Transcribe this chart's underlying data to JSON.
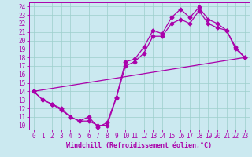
{
  "bg_color": "#cbe9f0",
  "grid_color": "#9dcfcc",
  "line_color": "#aa00aa",
  "xlim": [
    -0.5,
    23.5
  ],
  "ylim": [
    9.5,
    24.5
  ],
  "xticks": [
    0,
    1,
    2,
    3,
    4,
    5,
    6,
    7,
    8,
    9,
    10,
    11,
    12,
    13,
    14,
    15,
    16,
    17,
    18,
    19,
    20,
    21,
    22,
    23
  ],
  "yticks": [
    10,
    11,
    12,
    13,
    14,
    15,
    16,
    17,
    18,
    19,
    20,
    21,
    22,
    23,
    24
  ],
  "xlabel": "Windchill (Refroidissement éolien,°C)",
  "line1_x": [
    0,
    1,
    2,
    3,
    4,
    5,
    6,
    7,
    8,
    9,
    10,
    11,
    12,
    13,
    14,
    15,
    16,
    17,
    18,
    19,
    20,
    21,
    22,
    23
  ],
  "line1_y": [
    14.0,
    13.0,
    12.5,
    12.0,
    11.0,
    10.5,
    11.0,
    9.8,
    10.3,
    13.3,
    17.5,
    17.8,
    19.2,
    21.2,
    20.8,
    22.7,
    23.7,
    22.7,
    23.9,
    22.5,
    22.0,
    21.2,
    19.2,
    18.0
  ],
  "line2_x": [
    0,
    1,
    2,
    3,
    4,
    5,
    6,
    7,
    8,
    9,
    10,
    11,
    12,
    13,
    14,
    15,
    16,
    17,
    18,
    19,
    20,
    21,
    22,
    23
  ],
  "line2_y": [
    14.0,
    13.0,
    12.5,
    11.8,
    11.0,
    10.5,
    10.5,
    10.0,
    10.0,
    13.2,
    17.0,
    17.5,
    18.5,
    20.5,
    20.5,
    22.0,
    22.5,
    22.0,
    23.5,
    22.0,
    21.5,
    21.2,
    19.0,
    18.0
  ],
  "line3_x": [
    0,
    23
  ],
  "line3_y": [
    14.0,
    18.0
  ],
  "marker": "D",
  "markersize": 2.5,
  "linewidth": 0.9,
  "tick_fontsize": 5.5,
  "xlabel_fontsize": 6.0
}
